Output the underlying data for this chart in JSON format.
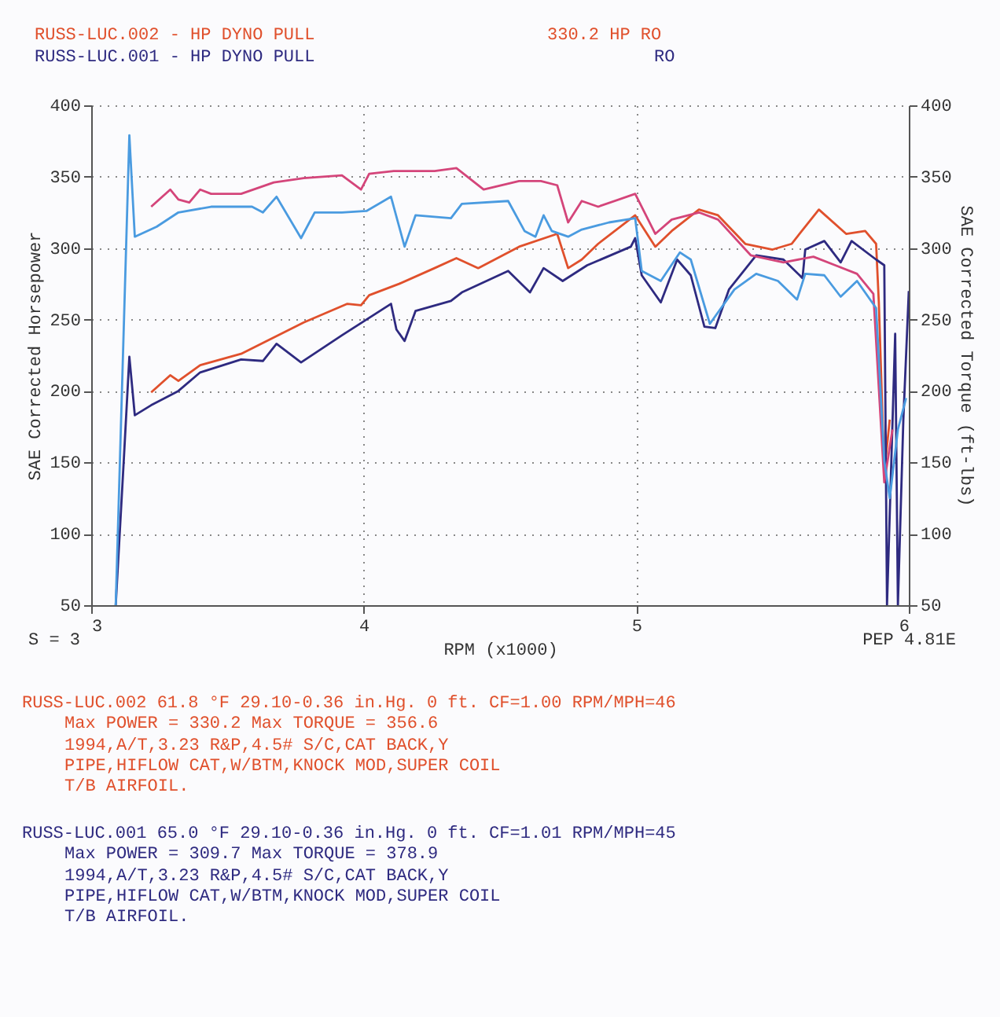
{
  "chart_data": {
    "type": "line",
    "xlabel": "RPM (x1000)",
    "ylabel": "SAE Corrected Horsepower",
    "y2label": "SAE Corrected Torque (ft-lbs)",
    "xlim": [
      3,
      6
    ],
    "xticks": [
      3,
      4,
      5,
      6
    ],
    "ylim": [
      50,
      400
    ],
    "yticks": [
      50,
      100,
      150,
      200,
      250,
      300,
      350,
      400
    ],
    "y2lim": [
      50,
      400
    ],
    "y2ticks": [
      50,
      100,
      150,
      200,
      250,
      300,
      350,
      400
    ],
    "grid": true,
    "legend": false,
    "marker": "none",
    "line_style": "solid",
    "series": [
      {
        "color": "#e0502c",
        "axis": "y",
        "x": [
          3.22,
          3.29,
          3.32,
          3.4,
          3.55,
          3.78,
          3.94,
          3.99,
          4.02,
          4.13,
          4.26,
          4.34,
          4.42,
          4.57,
          4.71,
          4.75,
          4.8,
          4.86,
          4.996,
          5.07,
          5.13,
          5.23,
          5.3,
          5.4,
          5.5,
          5.57,
          5.67,
          5.77,
          5.84,
          5.88,
          5.89,
          5.91,
          5.93
        ],
        "values": [
          199,
          211,
          207,
          218,
          226,
          248,
          261,
          260,
          267,
          275,
          286,
          293,
          286,
          301,
          310,
          286,
          292,
          303,
          323,
          301,
          312,
          327,
          323,
          303,
          299,
          303,
          327,
          310,
          312,
          303,
          262,
          143,
          180
        ]
      },
      {
        "color": "#2e2a80",
        "axis": "y",
        "x": [
          3.09,
          3.12,
          3.14,
          3.16,
          3.22,
          3.32,
          3.4,
          3.55,
          3.63,
          3.68,
          3.77,
          3.92,
          4.01,
          4.1,
          4.12,
          4.15,
          4.19,
          4.32,
          4.36,
          4.53,
          4.61,
          4.66,
          4.73,
          4.82,
          4.98,
          4.996,
          5.02,
          5.09,
          5.15,
          5.2,
          5.25,
          5.29,
          5.34,
          5.44,
          5.54,
          5.61,
          5.62,
          5.69,
          5.75,
          5.79,
          5.88,
          5.91,
          5.92,
          5.95,
          5.96,
          5.98,
          6.0
        ],
        "values": [
          50,
          153,
          224,
          183,
          190,
          200,
          213,
          222,
          221,
          233,
          220,
          239,
          250,
          261,
          243,
          235,
          256,
          263,
          269,
          284,
          269,
          286,
          277,
          288,
          301,
          307,
          281,
          262,
          292,
          281,
          245,
          244,
          271,
          295,
          292,
          279,
          299,
          305,
          290,
          305,
          292,
          288,
          50,
          240,
          50,
          180,
          270
        ]
      },
      {
        "color": "#d4457a",
        "axis": "y2",
        "x": [
          3.22,
          3.29,
          3.32,
          3.36,
          3.4,
          3.44,
          3.55,
          3.67,
          3.78,
          3.92,
          3.99,
          4.02,
          4.11,
          4.26,
          4.34,
          4.44,
          4.57,
          4.65,
          4.71,
          4.75,
          4.8,
          4.86,
          4.996,
          5.07,
          5.13,
          5.23,
          5.3,
          5.42,
          5.54,
          5.65,
          5.73,
          5.81,
          5.87,
          5.91,
          5.94
        ],
        "values": [
          329,
          341,
          334,
          332,
          341,
          338,
          338,
          346,
          349,
          351,
          341,
          352,
          354,
          354,
          356,
          341,
          347,
          347,
          344,
          318,
          333,
          329,
          338,
          310,
          320,
          325,
          320,
          295,
          290,
          294,
          288,
          282,
          268,
          136,
          173
        ]
      },
      {
        "color": "#4a9be0",
        "axis": "y2",
        "x": [
          3.09,
          3.14,
          3.16,
          3.24,
          3.32,
          3.44,
          3.59,
          3.63,
          3.68,
          3.77,
          3.82,
          3.92,
          4.01,
          4.1,
          4.15,
          4.19,
          4.32,
          4.36,
          4.53,
          4.59,
          4.63,
          4.66,
          4.69,
          4.75,
          4.8,
          4.9,
          4.996,
          5.02,
          5.09,
          5.16,
          5.2,
          5.27,
          5.36,
          5.44,
          5.52,
          5.59,
          5.62,
          5.69,
          5.75,
          5.81,
          5.88,
          5.91,
          5.93,
          5.96,
          5.99
        ],
        "values": [
          50,
          379,
          308,
          315,
          325,
          329,
          329,
          325,
          336,
          307,
          325,
          325,
          326,
          336,
          301,
          323,
          321,
          331,
          333,
          312,
          308,
          323,
          312,
          308,
          313,
          318,
          321,
          284,
          277,
          297,
          292,
          247,
          271,
          282,
          277,
          264,
          282,
          281,
          266,
          277,
          258,
          151,
          125,
          173,
          195
        ]
      }
    ],
    "annotations": [
      "RUSS-LUC.002 -   HP DYNO PULL",
      "330.2 HP RO",
      "RUSS-LUC.001 -   HP DYNO PULL",
      "RO",
      "S = 3",
      "PEP 4.81E",
      "RUSS-LUC.002       61.8 °F  29.10-0.36 in.Hg.  0 ft.  CF=1.00  RPM/MPH=46",
      "Max POWER = 330.2  Max TORQUE = 356.6",
      "1994,A/T,3.23 R&P,4.5# S/C,CAT BACK,Y",
      "PIPE,HIFLOW CAT,W/BTM,KNOCK MOD,SUPER COIL",
      "T/B AIRFOIL.",
      "RUSS-LUC.001       65.0 °F  29.10-0.36 in.Hg.  0 ft.  CF=1.01  RPM/MPH=45",
      "Max POWER = 309.7  Max TORQUE = 378.9",
      "1994,A/T,3.23 R&P,4.5# S/C,CAT BACK,Y",
      "PIPE,HIFLOW CAT,W/BTM,KNOCK MOD,SUPER COIL",
      "T/B AIRFOIL."
    ]
  }
}
